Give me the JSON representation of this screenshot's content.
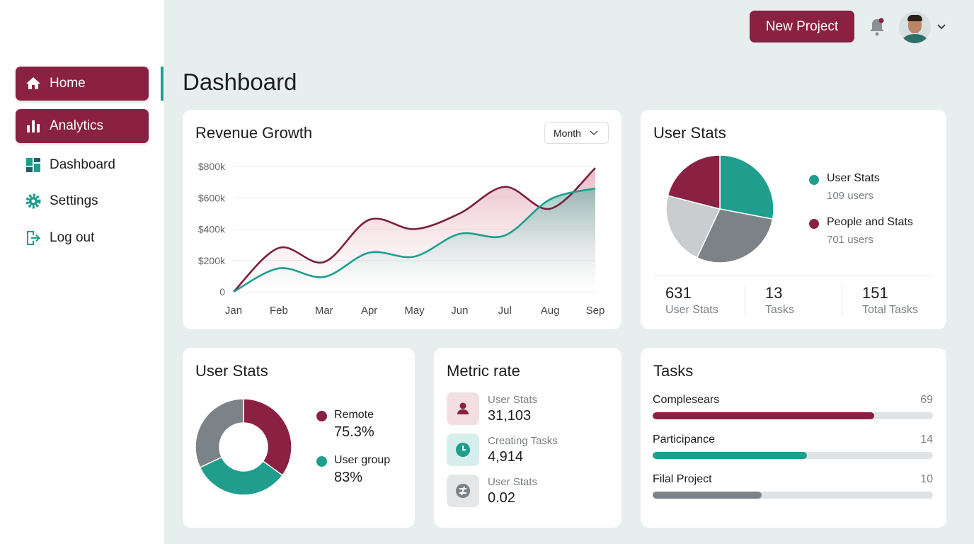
{
  "sidebar": {
    "items": [
      {
        "label": "Home",
        "icon": "home-icon",
        "active": true
      },
      {
        "label": "Analytics",
        "icon": "bar-chart-icon",
        "active": true
      },
      {
        "label": "Dashboard",
        "icon": "grid-icon"
      },
      {
        "label": "Settings",
        "icon": "gear-icon"
      },
      {
        "label": "Log out",
        "icon": "logout-icon"
      }
    ]
  },
  "header": {
    "new_project": "New Project",
    "page_title": "Dashboard"
  },
  "colors": {
    "accent": "#8a2142",
    "teal": "#1f9e8e",
    "gray": "#7b8288",
    "light_gray": "#c9cdd0"
  },
  "revenue": {
    "title": "Revenue Growth",
    "period": "Month"
  },
  "chart_data": {
    "type": "area",
    "title": "Revenue Growth",
    "categories": [
      "Jan",
      "Feb",
      "Mar",
      "Apr",
      "May",
      "Jun",
      "Jul",
      "Aug",
      "Sep"
    ],
    "y_ticks": [
      "0",
      "$200k",
      "$400k",
      "$600k",
      "$800k"
    ],
    "ylim": [
      0,
      800
    ],
    "grid": true,
    "series": [
      {
        "color": "#7a1f3d",
        "values": [
          0,
          280,
          190,
          460,
          400,
          500,
          670,
          530,
          790
        ]
      },
      {
        "color": "#1f9e8e",
        "values": [
          0,
          150,
          95,
          250,
          225,
          370,
          360,
          590,
          660
        ]
      }
    ]
  },
  "user_stats": {
    "title": "User Stats",
    "legend": [
      {
        "label": "User Stats",
        "sub": "109 users",
        "color": "#1f9e8e"
      },
      {
        "label": "People and Stats",
        "sub": "701 users",
        "color": "#8a2142"
      }
    ],
    "pie": [
      {
        "value": 28,
        "color": "#1f9e8e"
      },
      {
        "value": 29,
        "color": "#7b8288"
      },
      {
        "value": 22,
        "color": "#c9cdd0"
      },
      {
        "value": 21,
        "color": "#8a2142"
      }
    ],
    "stats": [
      {
        "value": "631",
        "label": "User Stats"
      },
      {
        "value": "13",
        "label": "Tasks"
      },
      {
        "value": "151",
        "label": "Total Tasks"
      }
    ]
  },
  "user_stats2": {
    "title": "User Stats",
    "legend": [
      {
        "label": "Remote",
        "value": "75.3%",
        "color": "#8a2142"
      },
      {
        "label": "User group",
        "value": "83%",
        "color": "#1f9e8e"
      }
    ],
    "donut": [
      {
        "value": 35,
        "color": "#8a2142"
      },
      {
        "value": 33,
        "color": "#1f9e8e"
      },
      {
        "value": 32,
        "color": "#7b8288"
      }
    ]
  },
  "metric": {
    "title": "Metric rate",
    "items": [
      {
        "label": "User Stats",
        "value": "31,103",
        "icon": "user-icon"
      },
      {
        "label": "Creating Tasks",
        "value": "4,914",
        "icon": "clock-icon"
      },
      {
        "label": "User Stats",
        "value": "0.02",
        "icon": "currency-icon"
      }
    ]
  },
  "tasks": {
    "title": "Tasks",
    "items": [
      {
        "label": "Complesears",
        "value": "69",
        "progress": 79,
        "color": "#8a2142"
      },
      {
        "label": "Participance",
        "value": "14",
        "progress": 55,
        "color": "#1f9e8e"
      },
      {
        "label": "Filal Project",
        "value": "10",
        "progress": 39,
        "color": "#7b8288"
      }
    ]
  }
}
